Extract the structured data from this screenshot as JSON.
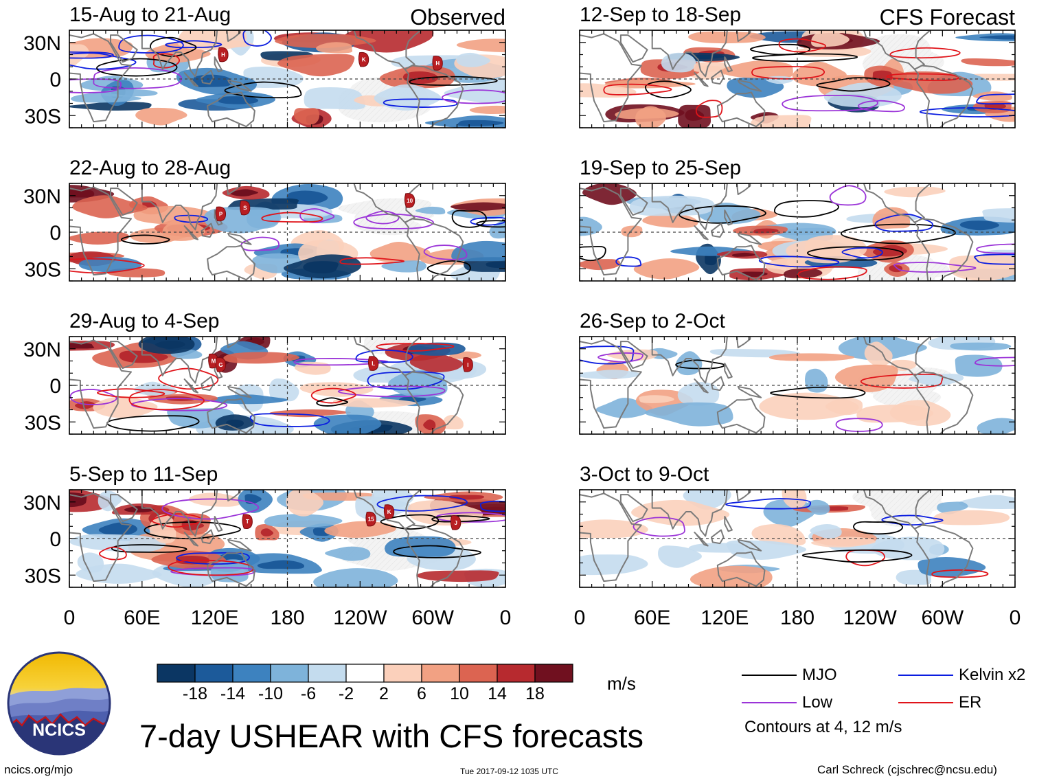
{
  "panels": {
    "observed": [
      {
        "label": "15-Aug to 21-Aug",
        "header": "Observed"
      },
      {
        "label": "22-Aug to 28-Aug"
      },
      {
        "label": "29-Aug to 4-Sep"
      },
      {
        "label": "5-Sep to 11-Sep"
      }
    ],
    "forecast": [
      {
        "label": "12-Sep to 18-Sep",
        "header": "CFS Forecast"
      },
      {
        "label": "19-Sep to 25-Sep"
      },
      {
        "label": "26-Sep to 2-Oct"
      },
      {
        "label": "3-Oct to 9-Oct"
      }
    ]
  },
  "axes": {
    "lat_labels": [
      "30N",
      "0",
      "30S"
    ],
    "lon_labels": [
      "0",
      "60E",
      "120E",
      "180",
      "120W",
      "60W",
      "0"
    ]
  },
  "storms": [
    {
      "panel": "obs-0",
      "text": "H",
      "lon": 127,
      "lat": 20
    },
    {
      "panel": "obs-0",
      "text": "K",
      "lon": 243,
      "lat": 16
    },
    {
      "panel": "obs-0",
      "text": "H",
      "lon": 304,
      "lat": 13
    },
    {
      "panel": "obs-1",
      "text": "10",
      "lon": 281,
      "lat": 26
    },
    {
      "panel": "obs-1",
      "text": "S",
      "lon": 145,
      "lat": 20
    },
    {
      "panel": "obs-1",
      "text": "P",
      "lon": 125,
      "lat": 15
    },
    {
      "panel": "obs-2",
      "text": "M",
      "lon": 119,
      "lat": 20
    },
    {
      "panel": "obs-2",
      "text": "G",
      "lon": 125,
      "lat": 17
    },
    {
      "panel": "obs-2",
      "text": "L",
      "lon": 251,
      "lat": 18
    },
    {
      "panel": "obs-2",
      "text": "I",
      "lon": 329,
      "lat": 17
    },
    {
      "panel": "obs-3",
      "text": "K",
      "lon": 264,
      "lat": 22
    },
    {
      "panel": "obs-3",
      "text": "15",
      "lon": 249,
      "lat": 16
    },
    {
      "panel": "obs-3",
      "text": "T",
      "lon": 147,
      "lat": 14
    },
    {
      "panel": "obs-3",
      "text": "J",
      "lon": 319,
      "lat": 13
    }
  ],
  "colorbar": {
    "tick_labels": [
      "-18",
      "-14",
      "-10",
      "-6",
      "-2",
      "2",
      "6",
      "10",
      "14",
      "18"
    ],
    "colors": [
      "#0b3663",
      "#1c5a9a",
      "#3d82bf",
      "#7eb3da",
      "#c4dcee",
      "#ffffff",
      "#fbd0bb",
      "#f2a183",
      "#dc6451",
      "#b72a2f",
      "#70101f"
    ],
    "units": "m/s"
  },
  "legend": {
    "items": [
      {
        "label": "MJO",
        "color": "#000000"
      },
      {
        "label": "Kelvin x2",
        "color": "#0b1de0"
      },
      {
        "label": "Low",
        "color": "#9b34d8"
      },
      {
        "label": "ER",
        "color": "#e0141a"
      }
    ],
    "contours_note": "Contours at 4, 12 m/s"
  },
  "logo": {
    "text": "NCICS"
  },
  "title": "7-day USHEAR with CFS forecasts",
  "footer": {
    "url": "ncics.org/mjo",
    "timestamp": "Tue 2017-09-12 1035 UTC",
    "author": "Carl Schreck (cjschrec@ncsu.edu)"
  }
}
